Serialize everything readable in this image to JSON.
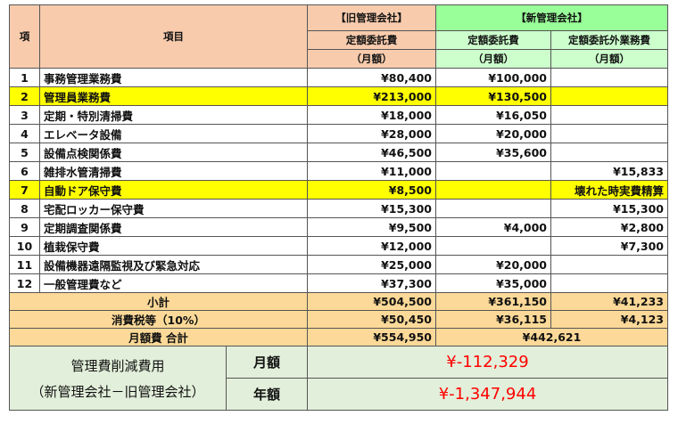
{
  "header": {
    "col_no": "項",
    "col_item": "項目",
    "old_company": "【旧管理会社】",
    "new_company": "【新管理会社】",
    "old_fee": "定額委託費",
    "old_fee_unit": "（月額）",
    "new_fee": "定額委託費",
    "new_fee_unit": "（月額）",
    "new_extra": "定額委託外業務費",
    "new_extra_unit": "（月額）"
  },
  "rows": [
    {
      "no": "1",
      "item": "事務管理業務費",
      "old": "¥80,400",
      "new": "¥100,000",
      "extra": "",
      "highlight": false
    },
    {
      "no": "2",
      "item": "管理員業務費",
      "old": "¥213,000",
      "new": "¥130,500",
      "extra": "",
      "highlight": true
    },
    {
      "no": "3",
      "item": "定期・特別清掃費",
      "old": "¥18,000",
      "new": "¥16,050",
      "extra": "",
      "highlight": false
    },
    {
      "no": "4",
      "item": "エレベータ設備",
      "old": "¥28,000",
      "new": "¥20,000",
      "extra": "",
      "highlight": false
    },
    {
      "no": "5",
      "item": "設備点検関係費",
      "old": "¥46,500",
      "new": "¥35,600",
      "extra": "",
      "highlight": false
    },
    {
      "no": "6",
      "item": "雑排水管清掃費",
      "old": "¥11,000",
      "new": "",
      "extra": "¥15,833",
      "highlight": false
    },
    {
      "no": "7",
      "item": "自動ドア保守費",
      "old": "¥8,500",
      "new": "",
      "extra": "壊れた時実費精算",
      "highlight": true
    },
    {
      "no": "8",
      "item": "宅配ロッカー保守費",
      "old": "¥15,300",
      "new": "",
      "extra": "¥15,300",
      "highlight": false
    },
    {
      "no": "9",
      "item": "定期調査関係費",
      "old": "¥9,500",
      "new": "¥4,000",
      "extra": "¥2,800",
      "highlight": false
    },
    {
      "no": "10",
      "item": "植栽保守費",
      "old": "¥12,000",
      "new": "",
      "extra": "¥7,300",
      "highlight": false
    },
    {
      "no": "11",
      "item": "設備機器遠隔監視及び緊急対応",
      "old": "¥25,000",
      "new": "¥20,000",
      "extra": "",
      "highlight": false
    },
    {
      "no": "12",
      "item": "一般管理費など",
      "old": "¥37,300",
      "new": "¥35,000",
      "extra": "",
      "highlight": false
    }
  ],
  "subtotal": {
    "label": "小計",
    "old": "¥504,500",
    "new": "¥361,150",
    "extra": "¥41,233"
  },
  "tax": {
    "label": "消費税等（10%）",
    "old": "¥50,450",
    "new": "¥36,115",
    "extra": "¥4,123"
  },
  "monthly_total": {
    "label": "月額費 合計",
    "old": "¥554,950",
    "new": "¥442,621"
  },
  "savings": {
    "title": "管理費削減費用",
    "subtitle": "（新管理会社－旧管理会社）",
    "monthly_label": "月額",
    "monthly_value": "¥-112,329",
    "yearly_label": "年額",
    "yearly_value": "¥-1,347,944"
  },
  "colors": {
    "old_header": "#f8cbad",
    "new_header": "#99ff99",
    "highlight": "#ffff00",
    "summary": "#fcd998",
    "footer": "#e2efda",
    "savings_text": "#ff0000"
  }
}
